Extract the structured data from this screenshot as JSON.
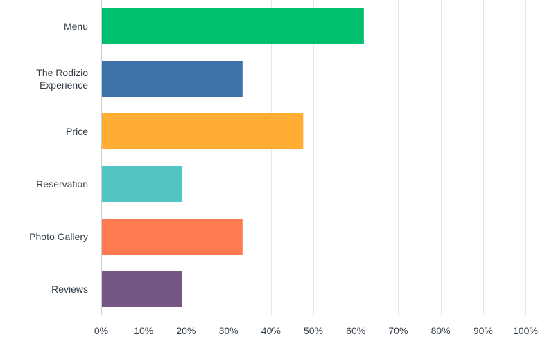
{
  "chart_data": {
    "type": "bar",
    "orientation": "horizontal",
    "categories": [
      "Menu",
      "The Rodizio Experience",
      "Price",
      "Reservation",
      "Photo Gallery",
      "Reviews"
    ],
    "category_lines": [
      [
        "Menu"
      ],
      [
        "The Rodizio",
        "Experience"
      ],
      [
        "Price"
      ],
      [
        "Reservation"
      ],
      [
        "Photo Gallery"
      ],
      [
        "Reviews"
      ]
    ],
    "values": [
      61.9,
      33.3,
      47.6,
      19.0,
      33.3,
      19.0
    ],
    "colors": [
      "#00bf6f",
      "#3d72ab",
      "#ffae33",
      "#52c4c4",
      "#ff7a50",
      "#745784"
    ],
    "xlim": [
      0,
      100
    ],
    "xticks": [
      0,
      10,
      20,
      30,
      40,
      50,
      60,
      70,
      80,
      90,
      100
    ],
    "xtick_labels": [
      "0%",
      "10%",
      "20%",
      "30%",
      "40%",
      "50%",
      "60%",
      "70%",
      "80%",
      "90%",
      "100%"
    ],
    "grid": true,
    "title": "",
    "xlabel": "",
    "ylabel": ""
  }
}
